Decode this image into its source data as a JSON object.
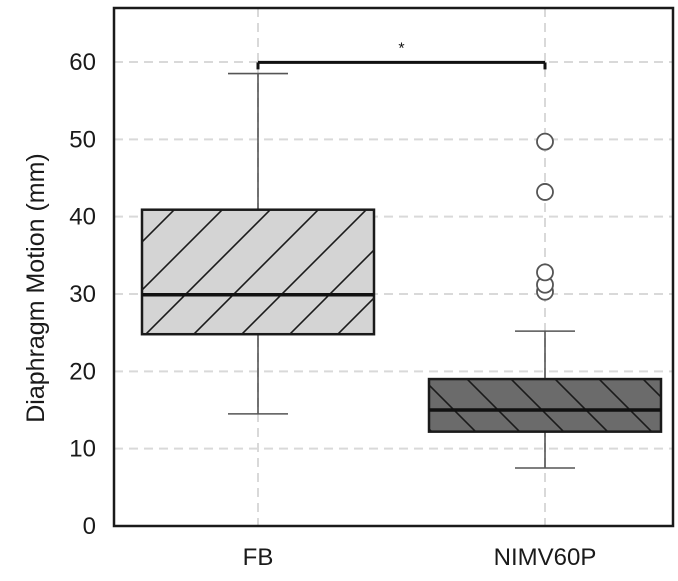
{
  "chart_data": {
    "type": "box",
    "ylabel": "Diaphragm Motion (mm)",
    "ylim": [
      0,
      67
    ],
    "yticks": [
      "0",
      "10",
      "20",
      "30",
      "40",
      "50",
      "60"
    ],
    "grid": true,
    "categories": [
      "FB",
      "NIMV60P"
    ],
    "boxes": [
      {
        "category": "FB",
        "whisker_low": 14.5,
        "q1": 24.8,
        "median": 29.9,
        "q3": 40.9,
        "whisker_high": 58.5,
        "outliers": [],
        "fill": "#d4d4d4",
        "hatch": "diagonal-up"
      },
      {
        "category": "NIMV60P",
        "whisker_low": 7.5,
        "q1": 12.2,
        "median": 15.0,
        "q3": 19.0,
        "whisker_high": 25.2,
        "outliers": [
          30.3,
          31.2,
          32.8,
          43.2,
          49.7
        ],
        "fill": "#6b6b6b",
        "hatch": "diagonal-down"
      }
    ],
    "significance": {
      "label": "*",
      "between": [
        "FB",
        "NIMV60P"
      ],
      "y": 61.5
    }
  }
}
